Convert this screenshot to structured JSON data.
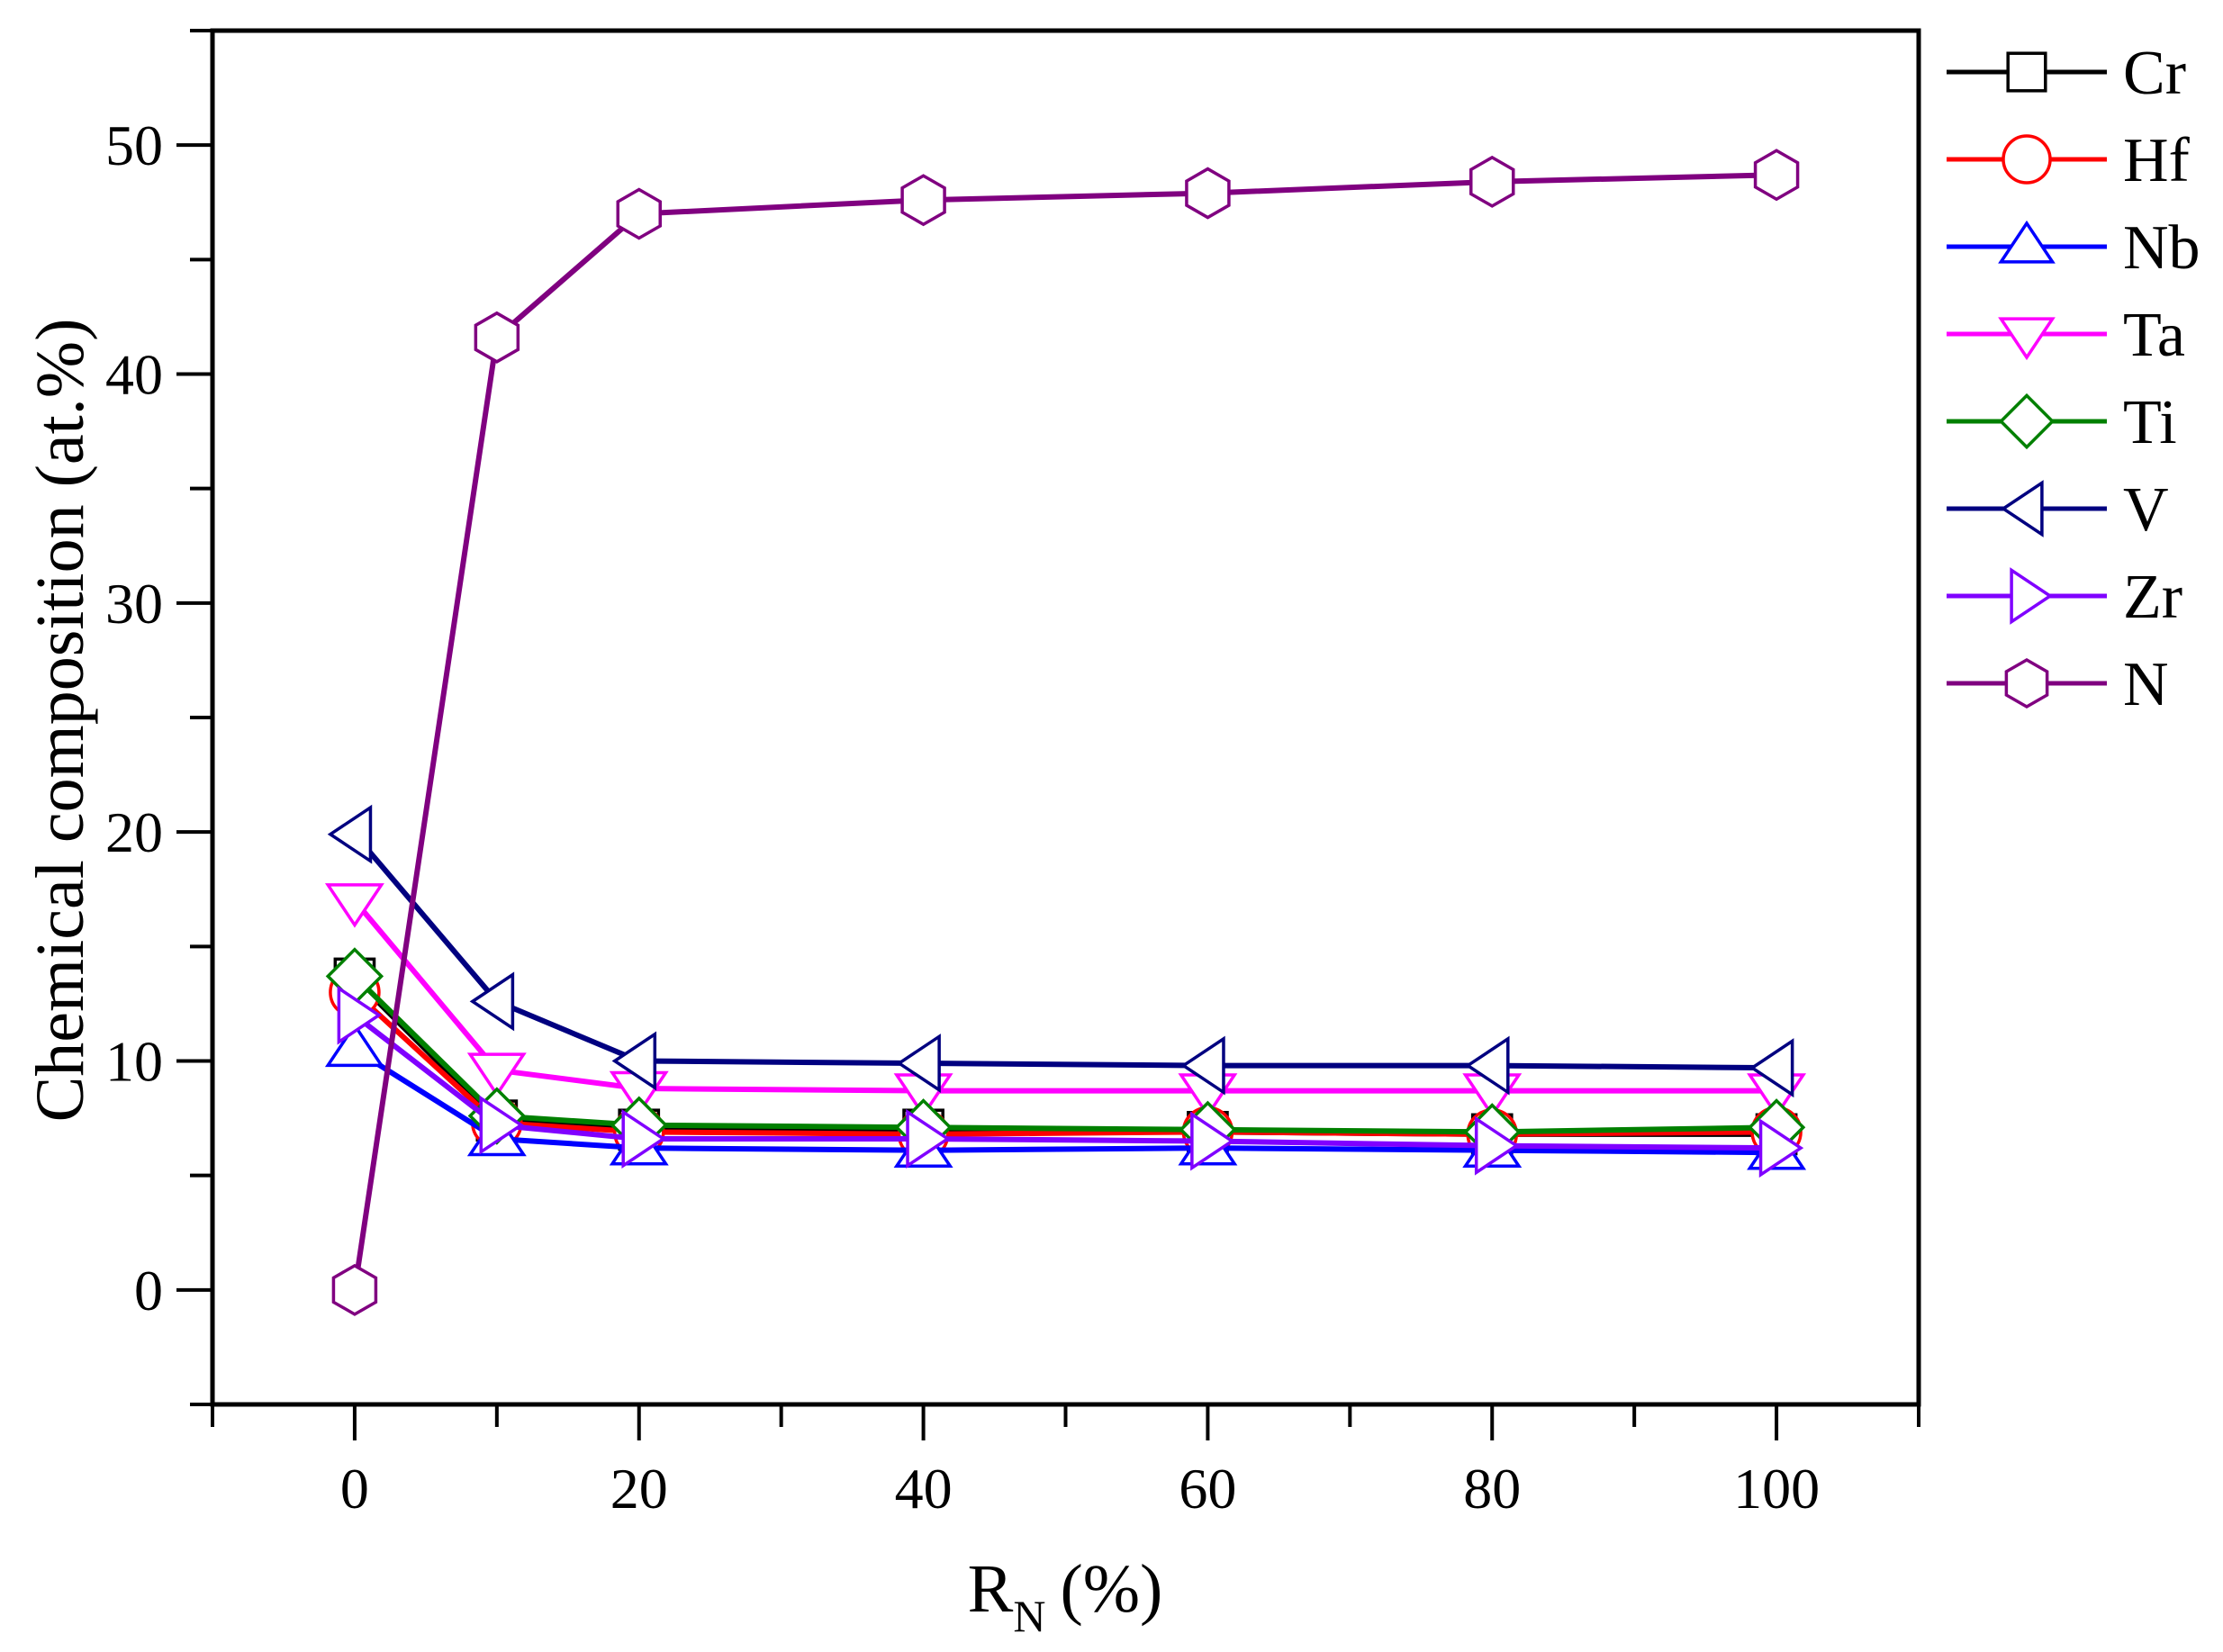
{
  "chart_data": {
    "type": "line",
    "title": "",
    "xlabel": "R_N (%)",
    "xlabel_main": "R",
    "xlabel_sub": "N",
    "xlabel_suffix": "(%)",
    "ylabel": "Chemical composition (at.%)",
    "xlim": [
      -10,
      110
    ],
    "ylim": [
      -5,
      55
    ],
    "xticks": [
      0,
      20,
      40,
      60,
      80,
      100
    ],
    "yticks": [
      0,
      10,
      20,
      30,
      40,
      50
    ],
    "grid": false,
    "legend_position": "right-outside",
    "x": [
      0,
      10,
      20,
      40,
      60,
      80,
      100
    ],
    "series": [
      {
        "name": "Cr",
        "color": "#000000",
        "marker": "square",
        "values": [
          13.6,
          7.4,
          7.0,
          7.0,
          6.9,
          6.8,
          6.8
        ]
      },
      {
        "name": "Hf",
        "color": "#ff0000",
        "marker": "circle",
        "values": [
          13.0,
          7.3,
          6.9,
          6.8,
          6.9,
          6.8,
          6.9
        ]
      },
      {
        "name": "Nb",
        "color": "#0000ff",
        "marker": "triangle-up",
        "values": [
          10.5,
          6.6,
          6.2,
          6.1,
          6.2,
          6.1,
          6.0
        ]
      },
      {
        "name": "Ta",
        "color": "#ff00ff",
        "marker": "triangle-down",
        "values": [
          17.0,
          9.6,
          8.8,
          8.7,
          8.7,
          8.7,
          8.7
        ]
      },
      {
        "name": "Ti",
        "color": "#008000",
        "marker": "diamond",
        "values": [
          13.7,
          7.6,
          7.2,
          7.1,
          7.0,
          6.9,
          7.1
        ]
      },
      {
        "name": "V",
        "color": "#000080",
        "marker": "triangle-left",
        "values": [
          19.9,
          12.6,
          10.0,
          9.9,
          9.8,
          9.8,
          9.7
        ]
      },
      {
        "name": "Zr",
        "color": "#8000ff",
        "marker": "triangle-right",
        "values": [
          12.0,
          7.2,
          6.6,
          6.6,
          6.5,
          6.3,
          6.2
        ]
      },
      {
        "name": "N",
        "color": "#800080",
        "marker": "hexagon",
        "values": [
          0.0,
          41.6,
          47.0,
          47.6,
          47.9,
          48.4,
          48.7
        ]
      }
    ]
  }
}
